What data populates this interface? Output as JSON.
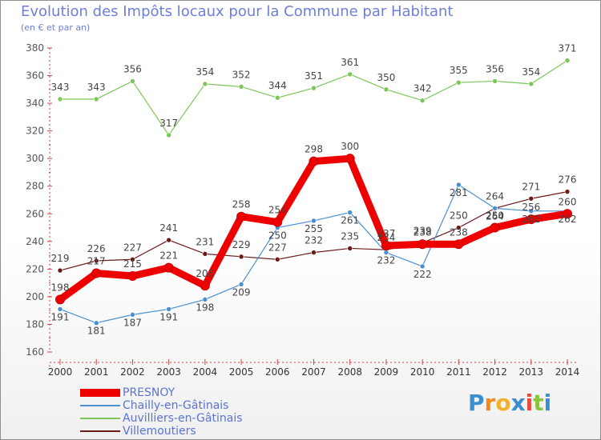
{
  "title": "Evolution des Impôts locaux pour la Commune par Habitant",
  "subtitle": "(en € et par an)",
  "brand": {
    "letters": [
      "P",
      "r",
      "o",
      "x",
      "i",
      "t",
      "i"
    ],
    "colors": [
      "#3a8fd0",
      "#f08a1c",
      "#f3b02a",
      "#3a8fd0",
      "#e94b3c",
      "#8ac440",
      "#3a8fd0"
    ]
  },
  "chart_data": {
    "type": "line",
    "x": [
      "2000",
      "2001",
      "2002",
      "2003",
      "2004",
      "2005",
      "2006",
      "2007",
      "2008",
      "2009",
      "2010",
      "2011",
      "2012",
      "2013",
      "2014"
    ],
    "ylim": [
      160,
      380
    ],
    "yticks": [
      "160",
      "180",
      "200",
      "220",
      "240",
      "260",
      "280",
      "300",
      "320",
      "340",
      "360",
      "380"
    ],
    "grid": false,
    "legend_position": "bottom-left",
    "series": [
      {
        "name": "PRESNOY",
        "color": "#ee0000",
        "values": [
          198,
          217,
          215,
          221,
          208,
          258,
          254,
          298,
          300,
          237,
          238,
          238,
          250,
          256,
          260
        ],
        "labels": [
          "198",
          "217",
          "215",
          "221",
          "208",
          "258",
          "254",
          "298",
          "300",
          "237",
          "238",
          "238",
          "250",
          "256",
          "260"
        ]
      },
      {
        "name": "Chailly-en-Gâtinais",
        "color": "#4a8fd0",
        "values": [
          191,
          181,
          187,
          191,
          198,
          209,
          250,
          255,
          261,
          232,
          222,
          281,
          264,
          262,
          262
        ],
        "labels": [
          "191",
          "181",
          "187",
          "191",
          "198",
          "209",
          "250",
          "255",
          "261",
          "232",
          "222",
          "281",
          "264",
          "262",
          "262"
        ]
      },
      {
        "name": "Auvilliers-en-Gâtinais",
        "color": "#7cc65a",
        "values": [
          343,
          343,
          356,
          317,
          354,
          352,
          344,
          351,
          361,
          350,
          342,
          355,
          356,
          354,
          371
        ],
        "labels": [
          "343",
          "343",
          "356",
          "317",
          "354",
          "352",
          "344",
          "351",
          "361",
          "350",
          "342",
          "355",
          "356",
          "354",
          "371"
        ]
      },
      {
        "name": "Villemoutiers",
        "color": "#6b1a1a",
        "values": [
          219,
          226,
          227,
          241,
          231,
          229,
          227,
          232,
          235,
          234,
          239,
          250,
          264,
          271,
          276
        ],
        "labels": [
          "219",
          "226",
          "227",
          "241",
          "231",
          "229",
          "227",
          "232",
          "235",
          "234",
          "239",
          "250",
          "264",
          "271",
          "276"
        ]
      }
    ]
  }
}
